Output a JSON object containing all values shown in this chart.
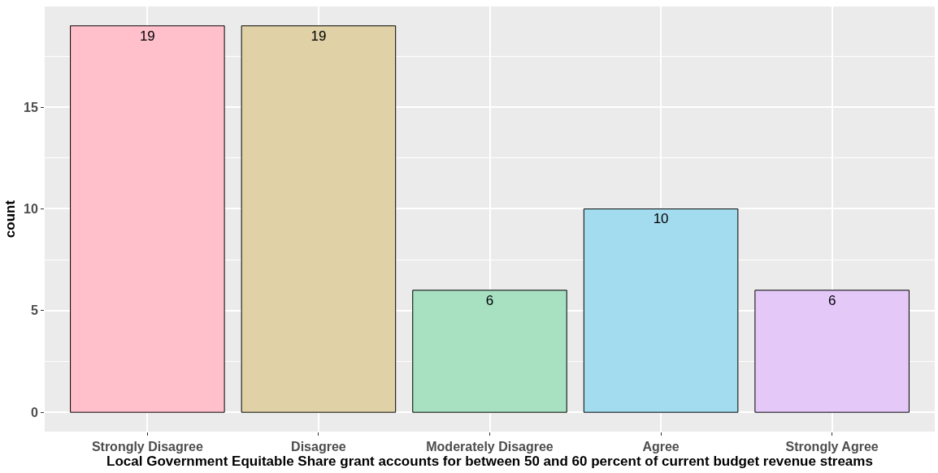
{
  "chart_data": {
    "type": "bar",
    "xlabel": "Local Government Equitable Share grant accounts for between 50 and 60 percent of current budget revenue streams",
    "ylabel": "count",
    "categories": [
      "Strongly Disagree",
      "Disagree",
      "Moderately Disagree",
      "Agree",
      "Strongly Agree"
    ],
    "values": [
      19,
      19,
      6,
      10,
      6
    ],
    "colors": [
      "#ffc0cb",
      "#e0d1a7",
      "#a8e0c2",
      "#a3dcef",
      "#e3c8f8"
    ],
    "ylim": [
      -0.95,
      19.95
    ],
    "yticks": [
      0,
      5,
      10,
      15
    ],
    "grid": true,
    "data_labels": true
  }
}
